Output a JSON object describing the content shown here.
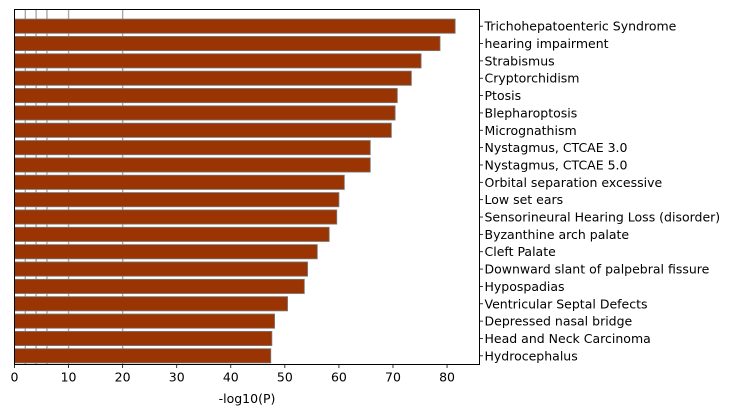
{
  "chart_data": {
    "type": "bar",
    "orientation": "horizontal",
    "title": "",
    "xlabel": "-log10(P)",
    "ylabel": "",
    "xlim": [
      0,
      86
    ],
    "xticks": [
      0,
      10,
      20,
      30,
      40,
      50,
      60,
      70,
      80
    ],
    "reference_lines": [
      2,
      4,
      6,
      10,
      20
    ],
    "label_position": "right",
    "categories": [
      "Trichohepatoenteric Syndrome",
      "hearing impairment",
      "Strabismus",
      "Cryptorchidism",
      "Ptosis",
      "Blepharoptosis",
      "Micrognathism",
      "Nystagmus, CTCAE 3.0",
      "Nystagmus, CTCAE 5.0",
      "Orbital separation excessive",
      "Low set ears",
      "Sensorineural Hearing Loss (disorder)",
      "Byzanthine arch palate",
      "Cleft Palate",
      "Downward slant of palpebral fissure",
      "Hypospadias",
      "Ventricular Septal Defects",
      "Depressed nasal bridge",
      "Head and Neck Carcinoma",
      "Hydrocephalus"
    ],
    "values": [
      81.5,
      78.7,
      75.2,
      73.4,
      70.8,
      70.4,
      69.7,
      65.8,
      65.8,
      61.0,
      60.0,
      59.6,
      58.2,
      56.0,
      54.2,
      53.6,
      50.5,
      48.1,
      47.6,
      47.4
    ],
    "colors": {
      "bar": "#9b3403",
      "bar_edge": "#7a7a7a",
      "reference_line": "#a8a8a8"
    }
  }
}
